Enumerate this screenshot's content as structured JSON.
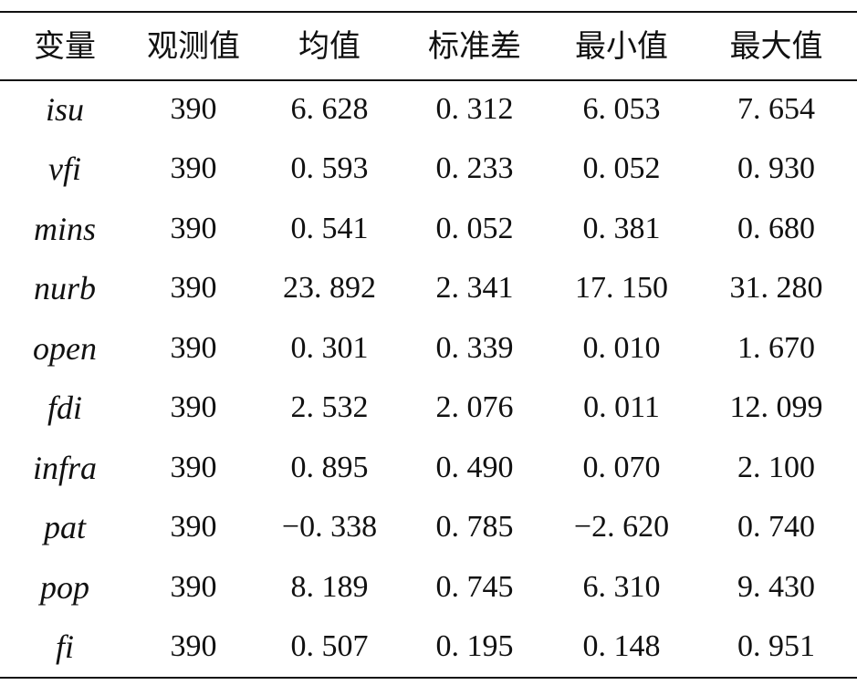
{
  "table": {
    "headers": [
      "变量",
      "观测值",
      "均值",
      "标准差",
      "最小值",
      "最大值"
    ],
    "rows": [
      {
        "variable": "isu",
        "obs": "390",
        "mean": "6. 628",
        "sd": "0. 312",
        "min": "6. 053",
        "max": "7. 654"
      },
      {
        "variable": "vfi",
        "obs": "390",
        "mean": "0. 593",
        "sd": "0. 233",
        "min": "0. 052",
        "max": "0. 930"
      },
      {
        "variable": "mins",
        "obs": "390",
        "mean": "0. 541",
        "sd": "0. 052",
        "min": "0. 381",
        "max": "0. 680"
      },
      {
        "variable": "nurb",
        "obs": "390",
        "mean": "23. 892",
        "sd": "2. 341",
        "min": "17. 150",
        "max": "31. 280"
      },
      {
        "variable": "open",
        "obs": "390",
        "mean": "0. 301",
        "sd": "0. 339",
        "min": "0. 010",
        "max": "1. 670"
      },
      {
        "variable": "fdi",
        "obs": "390",
        "mean": "2. 532",
        "sd": "2. 076",
        "min": "0. 011",
        "max": "12. 099"
      },
      {
        "variable": "infra",
        "obs": "390",
        "mean": "0. 895",
        "sd": "0. 490",
        "min": "0. 070",
        "max": "2. 100"
      },
      {
        "variable": "pat",
        "obs": "390",
        "mean": "−0. 338",
        "sd": "0. 785",
        "min": "−2. 620",
        "max": "0. 740"
      },
      {
        "variable": "pop",
        "obs": "390",
        "mean": "8. 189",
        "sd": "0. 745",
        "min": "6. 310",
        "max": "9. 430"
      },
      {
        "variable": "fi",
        "obs": "390",
        "mean": "0. 507",
        "sd": "0. 195",
        "min": "0. 148",
        "max": "0. 951"
      }
    ]
  }
}
